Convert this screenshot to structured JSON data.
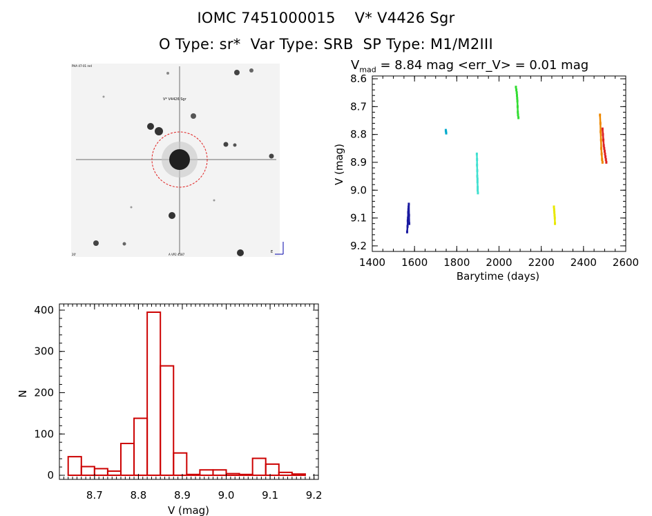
{
  "header": {
    "title": "IOMC 7451000015    V* V4426 Sgr",
    "subtitle": "O Type: sr*  Var Type: SRB  SP Type: M1/M2III"
  },
  "summary": {
    "v_prefix": "V",
    "v_sub": "mad",
    "v_rest": " = 8.84 mag <err_V> = 0.01 mag"
  },
  "finder": {
    "top_left_label": "PHA 47-01 red",
    "object_label": "V* V4426 Sgr",
    "bottom_left_label": "20'",
    "bottom_center_label": "A VP2 4587",
    "bottom_right_label": "E"
  },
  "colors": {
    "histogram": "#cc0000",
    "background": "#ffffff",
    "axes": "#000000",
    "circle": "#e02020"
  },
  "chart_data": [
    {
      "type": "scatter",
      "title": "",
      "xlabel": "Barytime (days)",
      "ylabel": "V (mag)",
      "xlim": [
        1400,
        2600
      ],
      "ylim": [
        9.22,
        8.59
      ],
      "y_inverted": true,
      "xticks": [
        1400,
        1600,
        1800,
        2000,
        2200,
        2400,
        2600
      ],
      "yticks": [
        8.6,
        8.7,
        8.8,
        8.9,
        9.0,
        9.1,
        9.2
      ],
      "ytick_labels": [
        "8.6",
        "8.7",
        "8.8",
        "8.9",
        "9.0",
        "9.1",
        "9.2"
      ],
      "series": [
        {
          "name": "season-1",
          "color": "#1a1aa0",
          "x": [
            1565,
            1567,
            1568,
            1569,
            1570,
            1571,
            1572,
            1573,
            1574,
            1575
          ],
          "y": [
            9.15,
            9.13,
            9.11,
            9.1,
            9.08,
            9.07,
            9.06,
            9.05,
            9.09,
            9.12
          ]
        },
        {
          "name": "season-2",
          "color": "#00aacc",
          "x": [
            1748,
            1749,
            1750
          ],
          "y": [
            8.785,
            8.79,
            8.795
          ]
        },
        {
          "name": "season-3",
          "color": "#40e0d0",
          "x": [
            1895,
            1896,
            1896,
            1897,
            1897,
            1898,
            1898,
            1899,
            1899,
            1900
          ],
          "y": [
            8.87,
            8.89,
            8.91,
            8.93,
            8.95,
            8.96,
            8.97,
            8.99,
            9.0,
            9.01
          ]
        },
        {
          "name": "season-4",
          "color": "#33dd33",
          "x": [
            2080,
            2082,
            2084,
            2085,
            2086,
            2087,
            2088,
            2089,
            2090,
            2092
          ],
          "y": [
            8.63,
            8.64,
            8.65,
            8.66,
            8.67,
            8.68,
            8.7,
            8.72,
            8.73,
            8.74
          ]
        },
        {
          "name": "season-5",
          "color": "#e8e800",
          "x": [
            2260,
            2261,
            2262,
            2263,
            2264,
            2265
          ],
          "y": [
            9.06,
            9.07,
            9.08,
            9.09,
            9.1,
            9.12
          ]
        },
        {
          "name": "season-6a",
          "color": "#ee8800",
          "x": [
            2478,
            2480,
            2481,
            2483,
            2484,
            2486,
            2488,
            2490
          ],
          "y": [
            8.73,
            8.76,
            8.79,
            8.82,
            8.85,
            8.87,
            8.89,
            8.9
          ]
        },
        {
          "name": "season-6b",
          "color": "#dd2222",
          "x": [
            2490,
            2492,
            2494,
            2496,
            2498,
            2500,
            2502,
            2504,
            2506,
            2508
          ],
          "y": [
            8.78,
            8.8,
            8.82,
            8.84,
            8.85,
            8.86,
            8.87,
            8.88,
            8.89,
            8.9
          ]
        }
      ]
    },
    {
      "type": "bar",
      "title": "",
      "xlabel": "V (mag)",
      "ylabel": "N",
      "xlim": [
        8.62,
        9.21
      ],
      "ylim": [
        -10,
        415
      ],
      "xticks": [
        8.7,
        8.8,
        8.9,
        9.0,
        9.1,
        9.2
      ],
      "xtick_labels": [
        "8.7",
        "8.8",
        "8.9",
        "9.0",
        "9.1",
        "9.2"
      ],
      "yticks": [
        0,
        100,
        200,
        300,
        400
      ],
      "ytick_labels": [
        "0",
        "100",
        "200",
        "300",
        "400"
      ],
      "bin_width": 0.03,
      "bin_start": 8.64,
      "values": [
        45,
        21,
        16,
        10,
        77,
        138,
        395,
        265,
        54,
        2,
        13,
        13,
        4,
        2,
        41,
        27,
        7,
        3
      ]
    }
  ]
}
